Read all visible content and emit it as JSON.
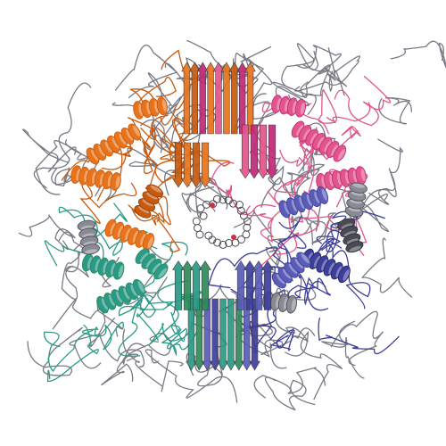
{
  "image": {
    "background": "#ffffff",
    "subject": "protein-ribbon-structure",
    "colors": {
      "orange": "#e8731a",
      "dark_orange": "#c85a0e",
      "magenta": "#c0287a",
      "pink": "#e2558a",
      "blue": "#5a5cb8",
      "dark_blue": "#3d3f9a",
      "teal": "#2a9a86",
      "green": "#2f8a5a",
      "gray": "#8a8a95",
      "dark_gray": "#4a4a55",
      "coil_gray": "#7a7a86"
    }
  }
}
